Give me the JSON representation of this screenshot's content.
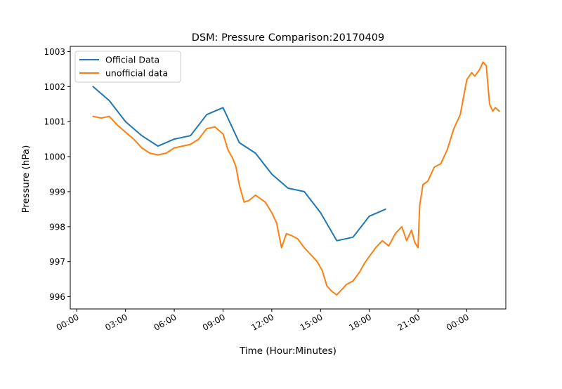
{
  "chart_data": {
    "type": "line",
    "title": "DSM: Pressure Comparison:20170409",
    "xlabel": "Time (Hour:Minutes)",
    "ylabel": "Pressure (hPa)",
    "x_unit": "hours",
    "xlim": [
      -0.4,
      26.4
    ],
    "ylim": [
      995.65,
      1003.15
    ],
    "x_ticks": [
      {
        "value": 0,
        "label": "00:00"
      },
      {
        "value": 3,
        "label": "03:00"
      },
      {
        "value": 6,
        "label": "06:00"
      },
      {
        "value": 9,
        "label": "09:00"
      },
      {
        "value": 12,
        "label": "12:00"
      },
      {
        "value": 15,
        "label": "15:00"
      },
      {
        "value": 18,
        "label": "18:00"
      },
      {
        "value": 21,
        "label": "21:00"
      },
      {
        "value": 24,
        "label": "00:00"
      }
    ],
    "y_ticks": [
      996,
      997,
      998,
      999,
      1000,
      1001,
      1002,
      1003
    ],
    "grid": false,
    "legend": {
      "position": "top-left"
    },
    "series": [
      {
        "name": "Official Data",
        "color": "#1f77b4",
        "x": [
          1,
          2,
          3,
          4,
          5,
          6,
          7,
          8,
          9,
          10,
          11,
          12,
          13,
          14,
          15,
          16,
          17,
          18,
          19
        ],
        "y": [
          1002.0,
          1001.6,
          1001.0,
          1000.6,
          1000.3,
          1000.5,
          1000.6,
          1001.2,
          1001.4,
          1000.4,
          1000.1,
          999.5,
          999.1,
          999.0,
          998.4,
          997.6,
          997.7,
          998.3,
          998.5
        ]
      },
      {
        "name": "unofficial data",
        "color": "#ff7f0e",
        "x": [
          1,
          1.5,
          2,
          2.5,
          3,
          3.5,
          4,
          4.5,
          5,
          5.5,
          6,
          6.5,
          7,
          7.5,
          8,
          8.5,
          9,
          9.3,
          9.6,
          9.8,
          10,
          10.3,
          10.6,
          11,
          11.3,
          11.6,
          12,
          12.3,
          12.6,
          12.9,
          13.2,
          13.6,
          14,
          14.4,
          14.8,
          15.1,
          15.4,
          15.7,
          16,
          16.3,
          16.6,
          17,
          17.4,
          17.7,
          18,
          18.4,
          18.8,
          19.2,
          19.6,
          20,
          20.3,
          20.6,
          20.8,
          21.0,
          21.1,
          21.3,
          21.6,
          22,
          22.4,
          22.8,
          23.2,
          23.6,
          24.0,
          24.3,
          24.5,
          24.8,
          25.0,
          25.2,
          25.4,
          25.6,
          25.75,
          26.0
        ],
        "y": [
          1001.15,
          1001.1,
          1001.15,
          1000.9,
          1000.7,
          1000.5,
          1000.25,
          1000.1,
          1000.05,
          1000.1,
          1000.25,
          1000.3,
          1000.35,
          1000.5,
          1000.8,
          1000.85,
          1000.65,
          1000.2,
          999.95,
          999.7,
          999.2,
          998.7,
          998.75,
          998.9,
          998.8,
          998.7,
          998.4,
          998.1,
          997.4,
          997.8,
          997.75,
          997.65,
          997.4,
          997.2,
          997.0,
          996.75,
          996.3,
          996.15,
          996.05,
          996.2,
          996.35,
          996.45,
          996.7,
          996.95,
          997.15,
          997.4,
          997.6,
          997.45,
          997.8,
          998.0,
          997.6,
          997.9,
          997.55,
          997.4,
          998.6,
          999.2,
          999.3,
          999.7,
          999.8,
          1000.2,
          1000.8,
          1001.2,
          1002.2,
          1002.4,
          1002.3,
          1002.5,
          1002.7,
          1002.6,
          1001.5,
          1001.3,
          1001.4,
          1001.3
        ]
      }
    ]
  }
}
